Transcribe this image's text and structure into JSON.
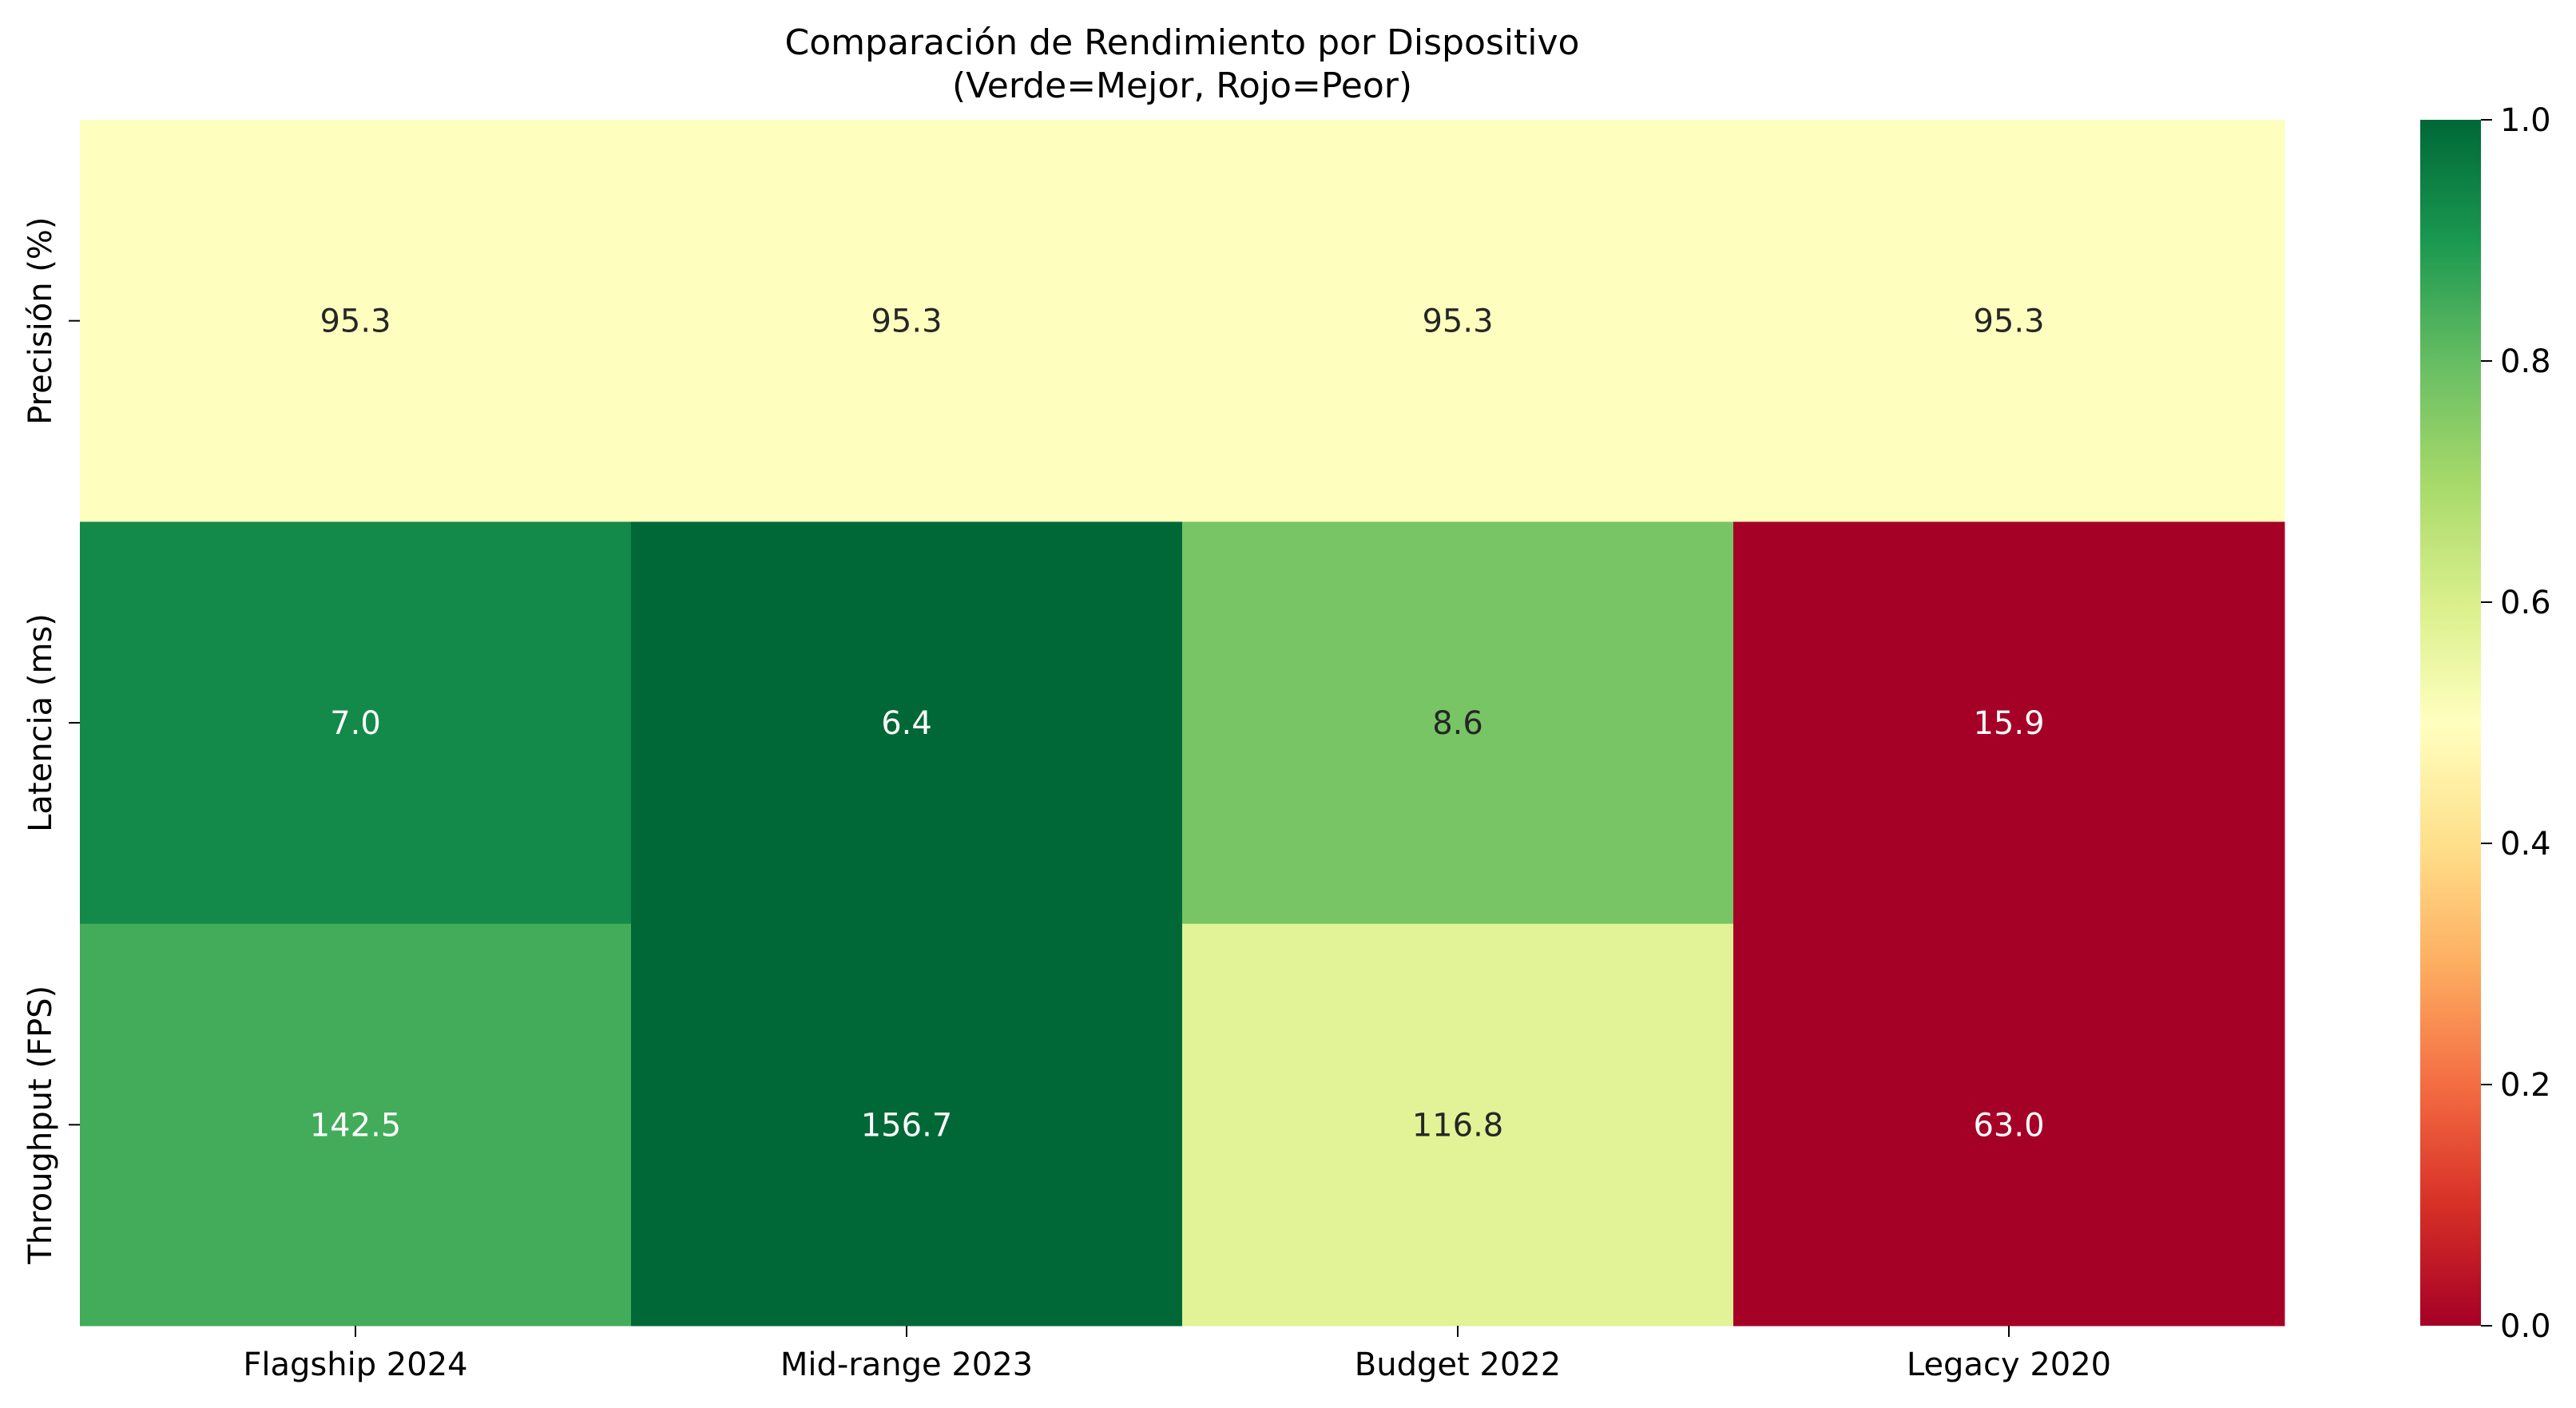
{
  "chart_data": {
    "type": "heatmap",
    "title": "Comparación de Rendimiento por Dispositivo",
    "subtitle": "(Verde=Mejor, Rojo=Peor)",
    "xlabel": "",
    "ylabel": "",
    "columns": [
      "Flagship 2024",
      "Mid-range 2023",
      "Budget 2022",
      "Legacy 2020"
    ],
    "rows": [
      "Precisión (%)",
      "Latencia (ms)",
      "Throughput (FPS)"
    ],
    "values": [
      [
        95.3,
        95.3,
        95.3,
        95.3
      ],
      [
        7.0,
        6.4,
        8.6,
        15.9
      ],
      [
        142.5,
        156.7,
        116.8,
        63.0
      ]
    ],
    "value_labels": [
      [
        "95.3",
        "95.3",
        "95.3",
        "95.3"
      ],
      [
        "7.0",
        "6.4",
        "8.6",
        "15.9"
      ],
      [
        "142.5",
        "156.7",
        "116.8",
        "63.0"
      ]
    ],
    "normalized_scores": [
      [
        0.5,
        0.5,
        0.5,
        0.5
      ],
      [
        0.94,
        1.0,
        0.77,
        0.0
      ],
      [
        0.85,
        1.0,
        0.57,
        0.0
      ]
    ],
    "colormap": "RdYlGn",
    "colorbar": {
      "range": [
        0.0,
        1.0
      ],
      "ticks": [
        0.0,
        0.2,
        0.4,
        0.6,
        0.8,
        1.0
      ],
      "tick_labels": [
        "0.0",
        "0.2",
        "0.4",
        "0.6",
        "0.8",
        "1.0"
      ]
    },
    "colors": {
      "cells": [
        [
          "#feffbe",
          "#feffbe",
          "#feffbe",
          "#feffbe"
        ],
        [
          "#138a49",
          "#006837",
          "#78c565",
          "#a50026"
        ],
        [
          "#42ac5a",
          "#006837",
          "#e1f396",
          "#a50026"
        ]
      ],
      "cell_text": [
        [
          "#262626",
          "#262626",
          "#262626",
          "#262626"
        ],
        [
          "#ffffff",
          "#ffffff",
          "#262626",
          "#ffffff"
        ],
        [
          "#ffffff",
          "#ffffff",
          "#262626",
          "#ffffff"
        ]
      ],
      "colorbar_stops": [
        "#a50026",
        "#d73027",
        "#f46d43",
        "#fdae61",
        "#fee08b",
        "#ffffbf",
        "#d9ef8b",
        "#a6d96a",
        "#66bd63",
        "#1a9850",
        "#006837"
      ]
    }
  }
}
